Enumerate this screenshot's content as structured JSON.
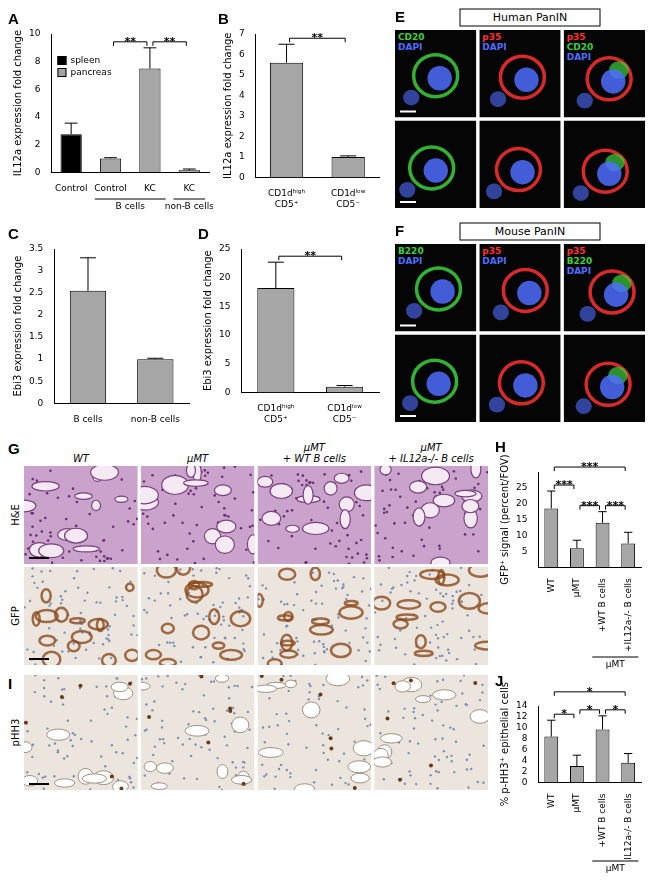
{
  "chart_data": [
    {
      "panel": "A",
      "type": "bar",
      "ylabel": "IL12a expression fold change",
      "categories": [
        "Control",
        "Control",
        "KC",
        "KC"
      ],
      "category_groups": [
        {
          "label": "B cells",
          "from": 1,
          "to": 2
        },
        {
          "label": "non-B cells",
          "from": 3,
          "to": 3
        }
      ],
      "series": [
        {
          "name": "spleen",
          "color": "#000000",
          "values": [
            2.75,
            null,
            null,
            null
          ],
          "errors": [
            0.8,
            null,
            null,
            null
          ]
        },
        {
          "name": "pancreas",
          "color": "#a6a6a6",
          "values": [
            null,
            1.0,
            7.5,
            0.15
          ],
          "errors": [
            null,
            0.05,
            1.5,
            0.08
          ]
        }
      ],
      "ylim": [
        0,
        10
      ],
      "yticks": [
        0,
        2,
        4,
        6,
        8,
        10
      ],
      "grid": false,
      "legend": "top-left",
      "significance": [
        {
          "text": "**",
          "from": 1,
          "to": 2
        },
        {
          "text": "**",
          "from": 2,
          "to": 3
        }
      ]
    },
    {
      "panel": "B",
      "type": "bar",
      "ylabel": "IL12a expression fold change",
      "categories": [
        "CD1dʰⁱᵍʰ\nCD5⁺",
        "CD1dˡᵒʷ\nCD5⁻"
      ],
      "values": [
        5.6,
        1.0
      ],
      "errors": [
        0.9,
        0.05
      ],
      "color": "#a6a6a6",
      "ylim": [
        0,
        7
      ],
      "yticks": [
        0,
        1,
        2,
        3,
        4,
        5,
        6,
        7
      ],
      "grid": false,
      "significance": [
        {
          "text": "**",
          "from": 0,
          "to": 1
        }
      ]
    },
    {
      "panel": "C",
      "type": "bar",
      "ylabel": "Ebi3 expression fold change",
      "categories": [
        "B cells",
        "non-B cells"
      ],
      "values": [
        2.55,
        1.0
      ],
      "errors": [
        0.75,
        0.02
      ],
      "color": "#a6a6a6",
      "ylim": [
        0,
        3.5
      ],
      "yticks": [
        0,
        0.5,
        1,
        1.5,
        2,
        2.5,
        3,
        3.5
      ],
      "grid": false
    },
    {
      "panel": "D",
      "type": "bar",
      "ylabel": "Ebi3 expression fold change",
      "categories": [
        "CD1dʰⁱᵍʰ\nCD5⁺",
        "CD1dˡᵒʷ\nCD5⁻"
      ],
      "values": [
        18.2,
        1.0
      ],
      "errors": [
        4.5,
        0.2
      ],
      "color": "#a6a6a6",
      "ylim": [
        0,
        25
      ],
      "yticks": [
        0,
        5,
        10,
        15,
        20,
        25
      ],
      "grid": false,
      "significance": [
        {
          "text": "**",
          "from": 0,
          "to": 1
        }
      ]
    },
    {
      "panel": "H",
      "type": "bar",
      "ylabel": "GFP⁺ signal (percent/FOV)",
      "categories": [
        "WT",
        "µMT",
        "+WT B cells",
        "+IL12a-/- B cells"
      ],
      "category_groups": [
        {
          "label": "µMT",
          "from": 2,
          "to": 3
        }
      ],
      "values": [
        18.5,
        6.0,
        14.0,
        7.5
      ],
      "errors": [
        5.5,
        2.5,
        3.5,
        3.5
      ],
      "color": "#a6a6a6",
      "ylim": [
        0,
        30
      ],
      "yticks": [
        5,
        10,
        15,
        20,
        25
      ],
      "grid": false,
      "significance": [
        {
          "text": "***",
          "from": 0,
          "to": 1
        },
        {
          "text": "***",
          "from": 1,
          "to": 2
        },
        {
          "text": "***",
          "from": 2,
          "to": 3
        },
        {
          "text": "***",
          "from": 0,
          "to": 3
        }
      ]
    },
    {
      "panel": "J",
      "type": "bar",
      "ylabel": "% p-HH3⁺ epithelial cells",
      "categories": [
        "WT",
        "µMT",
        "+WT B cells",
        "+IL12a-/- B cells"
      ],
      "category_groups": [
        {
          "label": "µMT",
          "from": 2,
          "to": 3
        }
      ],
      "values": [
        8.4,
        3.0,
        9.7,
        3.6
      ],
      "errors": [
        3.0,
        2.0,
        2.5,
        1.7
      ],
      "color": "#a6a6a6",
      "ylim": [
        0,
        14
      ],
      "yticks": [
        0,
        2,
        4,
        6,
        8,
        10,
        12,
        14
      ],
      "grid": false,
      "significance": [
        {
          "text": "*",
          "from": 0,
          "to": 1
        },
        {
          "text": "*",
          "from": 1,
          "to": 2
        },
        {
          "text": "*",
          "from": 2,
          "to": 3
        },
        {
          "text": "*",
          "from": 0,
          "to": 3
        }
      ]
    }
  ],
  "image_panels": [
    {
      "panel": "E",
      "title": "Human PanIN",
      "rows": [
        [
          [
            {
              "text": "CD20",
              "color": "#3bd13b"
            },
            {
              "text": "DAPI",
              "color": "#4f6dff"
            }
          ],
          [
            {
              "text": "p35",
              "color": "#ff3030"
            },
            {
              "text": "DAPI",
              "color": "#4f6dff"
            }
          ],
          [
            {
              "text": "p35",
              "color": "#ff3030"
            },
            {
              "text": "CD20",
              "color": "#3bd13b"
            },
            {
              "text": "DAPI",
              "color": "#4f6dff"
            }
          ]
        ],
        [
          [],
          [],
          []
        ]
      ]
    },
    {
      "panel": "F",
      "title": "Mouse PanIN",
      "rows": [
        [
          [
            {
              "text": "B220",
              "color": "#3bd13b"
            },
            {
              "text": "DAPI",
              "color": "#4f6dff"
            }
          ],
          [
            {
              "text": "p35",
              "color": "#ff3030"
            },
            {
              "text": "DAPI",
              "color": "#4f6dff"
            }
          ],
          [
            {
              "text": "p35",
              "color": "#ff3030"
            },
            {
              "text": "B220",
              "color": "#3bd13b"
            },
            {
              "text": "DAPI",
              "color": "#4f6dff"
            }
          ]
        ],
        [
          [],
          [],
          []
        ]
      ]
    },
    {
      "panel": "G",
      "columns": [
        "WT",
        "µMT",
        "µMT\n+ WT B cells",
        "µMT\n+ IL12a-/- B cells"
      ],
      "rows": [
        "H&E",
        "GFP"
      ]
    },
    {
      "panel": "I",
      "columns": [
        null,
        null,
        null,
        null
      ],
      "rows": [
        "pHH3"
      ]
    }
  ]
}
